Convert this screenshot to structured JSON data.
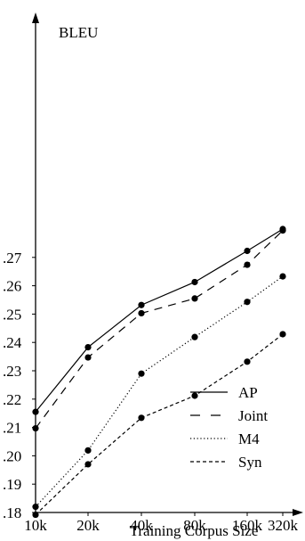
{
  "chart_data": {
    "type": "line",
    "title": "",
    "xlabel": "Training Corpus Size",
    "ylabel": "BLEU",
    "categories": [
      "10k",
      "20k",
      "40k",
      "80k",
      "160k",
      "320k"
    ],
    "ylim": [
      0.18,
      0.28
    ],
    "yticks": [
      0.18,
      0.19,
      0.2,
      0.21,
      0.22,
      0.23,
      0.24,
      0.25,
      0.26,
      0.27
    ],
    "ytick_labels": [
      ".18",
      ".19",
      ".20",
      ".21",
      ".22",
      ".23",
      ".24",
      ".25",
      ".26",
      ".27"
    ],
    "grid": false,
    "legend_position": "bottom-right",
    "series": [
      {
        "name": "AP",
        "style": "solid",
        "values": [
          0.2155,
          0.2383,
          0.2532,
          0.2613,
          0.2723,
          0.28
        ]
      },
      {
        "name": "Joint",
        "style": "dashed",
        "values": [
          0.2097,
          0.2347,
          0.2503,
          0.2555,
          0.2674,
          0.2795
        ]
      },
      {
        "name": "M4",
        "style": "dotted",
        "values": [
          0.182,
          0.2019,
          0.229,
          0.2419,
          0.2543,
          0.2633
        ]
      },
      {
        "name": "Syn",
        "style": "dashed-short",
        "values": [
          0.1792,
          0.197,
          0.2134,
          0.2212,
          0.2332,
          0.2429
        ]
      }
    ],
    "colors": {
      "line": "#000000",
      "marker": "#000000",
      "background": "#ffffff"
    }
  }
}
